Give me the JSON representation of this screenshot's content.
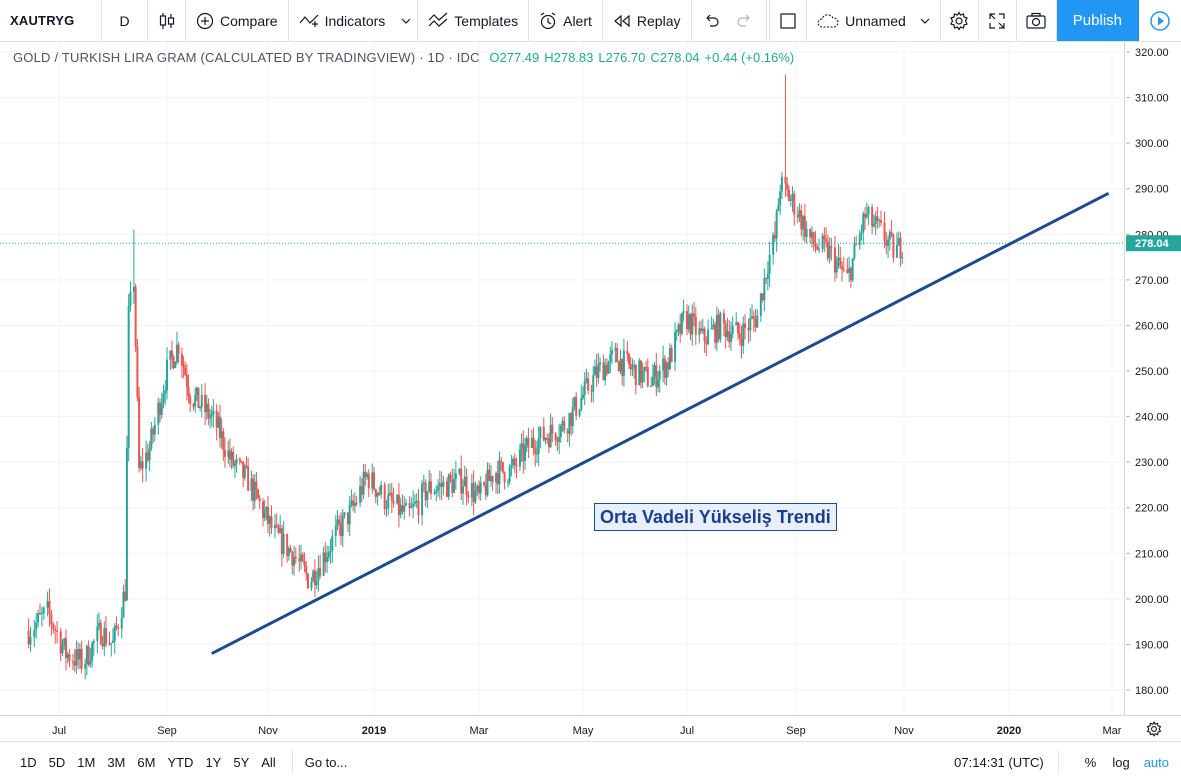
{
  "toolbar": {
    "symbol": "XAUTRYG",
    "interval": "D",
    "compare": "Compare",
    "indicators": "Indicators",
    "templates": "Templates",
    "alert": "Alert",
    "replay": "Replay",
    "layout_name": "Unnamed",
    "publish": "Publish",
    "icons": [
      "candles-icon",
      "plus-circle-icon",
      "indicators-icon",
      "templates-icon",
      "alarm-clock-icon",
      "replay-icon",
      "undo-icon",
      "redo-icon",
      "square-icon",
      "cloud-icon",
      "gear-icon",
      "fullscreen-icon",
      "camera-icon",
      "play-icon"
    ]
  },
  "legend": {
    "title": "GOLD / TURKISH LIRA GRAM (CALCULATED BY TRADINGVIEW) · 1D · IDC",
    "open": "O277.49",
    "high": "H278.83",
    "low": "L276.70",
    "close": "C278.04",
    "change": "+0.44 (+0.16%)"
  },
  "chart_data": {
    "type": "candlestick",
    "y_ticks": [
      "320.00",
      "310.00",
      "300.00",
      "290.00",
      "280.00",
      "270.00",
      "260.00",
      "250.00",
      "240.00",
      "230.00",
      "220.00",
      "210.00",
      "200.00",
      "190.00",
      "180.00"
    ],
    "x_ticks": [
      "Jul",
      "Sep",
      "Nov",
      "2019",
      "Mar",
      "May",
      "Jul",
      "Sep",
      "Nov",
      "2020",
      "Mar"
    ],
    "ylim": [
      176,
      321
    ],
    "last_price": "278.04",
    "series_close": [
      [
        "2018-06-15",
        193
      ],
      [
        "2018-06-25",
        197
      ],
      [
        "2018-07-05",
        188
      ],
      [
        "2018-07-15",
        186
      ],
      [
        "2018-07-25",
        193
      ],
      [
        "2018-08-01",
        190
      ],
      [
        "2018-08-08",
        202
      ],
      [
        "2018-08-10",
        262
      ],
      [
        "2018-08-13",
        270
      ],
      [
        "2018-08-16",
        228
      ],
      [
        "2018-08-22",
        233
      ],
      [
        "2018-09-01",
        250
      ],
      [
        "2018-09-08",
        256
      ],
      [
        "2018-09-15",
        245
      ],
      [
        "2018-09-25",
        241
      ],
      [
        "2018-10-01",
        238
      ],
      [
        "2018-10-10",
        230
      ],
      [
        "2018-10-20",
        226
      ],
      [
        "2018-10-28",
        220
      ],
      [
        "2018-11-05",
        214
      ],
      [
        "2018-11-15",
        210
      ],
      [
        "2018-11-25",
        204
      ],
      [
        "2018-12-01",
        208
      ],
      [
        "2018-12-10",
        214
      ],
      [
        "2018-12-20",
        220
      ],
      [
        "2018-12-28",
        227
      ],
      [
        "2019-01-07",
        222
      ],
      [
        "2019-01-20",
        218
      ],
      [
        "2019-01-31",
        224
      ],
      [
        "2019-02-10",
        225
      ],
      [
        "2019-02-20",
        226
      ],
      [
        "2019-03-01",
        222
      ],
      [
        "2019-03-10",
        228
      ],
      [
        "2019-03-20",
        228
      ],
      [
        "2019-03-31",
        234
      ],
      [
        "2019-04-10",
        236
      ],
      [
        "2019-04-20",
        238
      ],
      [
        "2019-04-30",
        244
      ],
      [
        "2019-05-10",
        250
      ],
      [
        "2019-05-20",
        253
      ],
      [
        "2019-05-31",
        250
      ],
      [
        "2019-06-10",
        248
      ],
      [
        "2019-06-20",
        252
      ],
      [
        "2019-06-30",
        262
      ],
      [
        "2019-07-10",
        257
      ],
      [
        "2019-07-20",
        260
      ],
      [
        "2019-07-31",
        258
      ],
      [
        "2019-08-10",
        262
      ],
      [
        "2019-08-16",
        274
      ],
      [
        "2019-08-20",
        279
      ],
      [
        "2019-08-23",
        291
      ],
      [
        "2019-09-01",
        286
      ],
      [
        "2019-09-10",
        278
      ],
      [
        "2019-09-20",
        276
      ],
      [
        "2019-09-30",
        270
      ],
      [
        "2019-10-10",
        284
      ],
      [
        "2019-10-20",
        280
      ],
      [
        "2019-10-27",
        276
      ],
      [
        "2019-10-31",
        278
      ]
    ],
    "trendline": {
      "from": [
        "2018-09-28",
        188
      ],
      "to": [
        "2020-02-28",
        289
      ]
    },
    "annotation": "Orta Vadeli Yükseliş Trendi"
  },
  "bottom_bar": {
    "ranges": [
      "1D",
      "5D",
      "1M",
      "3M",
      "6M",
      "YTD",
      "1Y",
      "5Y",
      "All"
    ],
    "goto": "Go to...",
    "time": "07:14:31 (UTC)",
    "percent": "%",
    "log": "log",
    "auto": "auto"
  },
  "colors": {
    "up": "#26a69a",
    "down": "#ef5350",
    "trend": "#1e4b8f",
    "accent": "#2196f3"
  }
}
